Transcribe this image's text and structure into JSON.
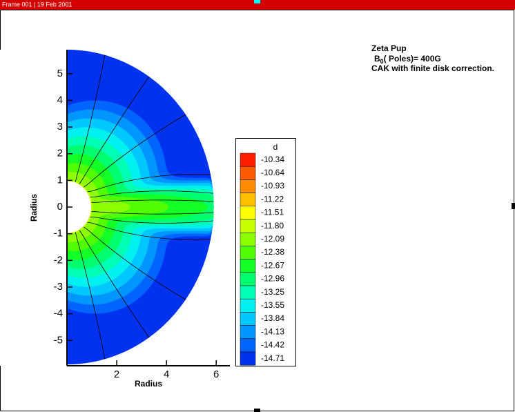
{
  "header": "Frame 001 | 19 Feb 2001",
  "chart_data": {
    "type": "contour",
    "xlabel": "Radius",
    "ylabel": "Radius",
    "xlim": [
      0,
      6.55
    ],
    "ylim": [
      -5.95,
      5.9
    ],
    "xticks": [
      2,
      4,
      6
    ],
    "yticks": [
      -5,
      -4,
      -3,
      -2,
      -1,
      0,
      1,
      2,
      3,
      4,
      5
    ],
    "annotations": {
      "line1": "Zeta Pup",
      "line2_main": "B",
      "line2_sub": "0",
      "line2_rest": "( Poles)= 400G",
      "line3": "CAK with finite disk correction."
    },
    "legend": {
      "title": "d",
      "levels": [
        -10.34,
        -10.64,
        -10.93,
        -11.22,
        -11.51,
        {
          "value": -11.8,
          "label": "-11.80"
        },
        -12.09,
        -12.38,
        -12.67,
        -12.96,
        -13.25,
        -13.55,
        -13.84,
        -14.13,
        -14.42,
        -14.71
      ],
      "colors": [
        "#ff1e00",
        "#ff5a00",
        "#ff8c00",
        "#ffbe00",
        "#ffff00",
        "#c8ff00",
        "#8cff00",
        "#50ff00",
        "#14ff28",
        "#00ff6e",
        "#00ffb4",
        "#00f0f0",
        "#00c8ff",
        "#0096ff",
        "#0064ff",
        "#0032f0"
      ]
    }
  }
}
